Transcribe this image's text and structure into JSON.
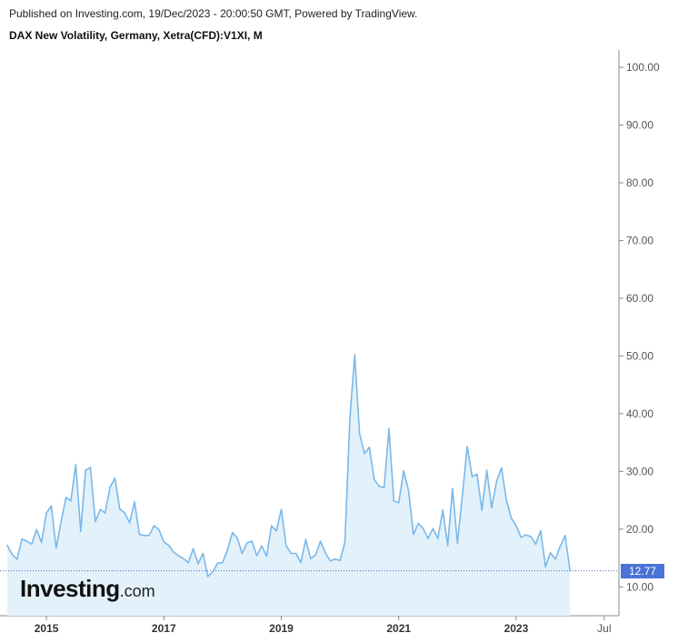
{
  "header": {
    "published": "Published on Investing.com, 19/Dec/2023 - 20:00:50 GMT, Powered by TradingView.",
    "title": "DAX New Volatility, Germany, Xetra(CFD):V1XI, M"
  },
  "logo": {
    "main": "Investing",
    "suffix": ".com"
  },
  "colors": {
    "line": "#7ab8ea",
    "area": "#e3f1fb",
    "badge": "#4a73d6",
    "axis": "#555555"
  },
  "chart_data": {
    "type": "area",
    "title": "DAX New Volatility, Germany, Xetra(CFD):V1XI, M",
    "interval": "M",
    "ylim": [
      5,
      103
    ],
    "yticks": [
      10.0,
      20.0,
      30.0,
      40.0,
      50.0,
      60.0,
      70.0,
      80.0,
      90.0,
      100.0
    ],
    "ytick_labels": [
      "10.00",
      "20.00",
      "30.00",
      "40.00",
      "50.00",
      "60.00",
      "70.00",
      "80.00",
      "90.00",
      "100.00"
    ],
    "xlim": [
      "2014-05",
      "2024-10"
    ],
    "xticks": [
      {
        "label": "2015",
        "date": "2015-01",
        "bold": true
      },
      {
        "label": "2017",
        "date": "2017-01",
        "bold": true
      },
      {
        "label": "2019",
        "date": "2019-01",
        "bold": true
      },
      {
        "label": "2021",
        "date": "2021-01",
        "bold": true
      },
      {
        "label": "2023",
        "date": "2023-01",
        "bold": true
      },
      {
        "label": "Jul",
        "date": "2024-07",
        "bold": false
      }
    ],
    "last_value": "12.77",
    "series": [
      {
        "x": [
          "2014-05",
          "2014-06",
          "2014-07",
          "2014-08",
          "2014-09",
          "2014-10",
          "2014-11",
          "2014-12",
          "2015-01",
          "2015-02",
          "2015-03",
          "2015-04",
          "2015-05",
          "2015-06",
          "2015-07",
          "2015-08",
          "2015-09",
          "2015-10",
          "2015-11",
          "2015-12",
          "2016-01",
          "2016-02",
          "2016-03",
          "2016-04",
          "2016-05",
          "2016-06",
          "2016-07",
          "2016-08",
          "2016-09",
          "2016-10",
          "2016-11",
          "2016-12",
          "2017-01",
          "2017-02",
          "2017-03",
          "2017-04",
          "2017-05",
          "2017-06",
          "2017-07",
          "2017-08",
          "2017-09",
          "2017-10",
          "2017-11",
          "2017-12",
          "2018-01",
          "2018-02",
          "2018-03",
          "2018-04",
          "2018-05",
          "2018-06",
          "2018-07",
          "2018-08",
          "2018-09",
          "2018-10",
          "2018-11",
          "2018-12",
          "2019-01",
          "2019-02",
          "2019-03",
          "2019-04",
          "2019-05",
          "2019-06",
          "2019-07",
          "2019-08",
          "2019-09",
          "2019-10",
          "2019-11",
          "2019-12",
          "2020-01",
          "2020-02",
          "2020-03",
          "2020-04",
          "2020-05",
          "2020-06",
          "2020-07",
          "2020-08",
          "2020-09",
          "2020-10",
          "2020-11",
          "2020-12",
          "2021-01",
          "2021-02",
          "2021-03",
          "2021-04",
          "2021-05",
          "2021-06",
          "2021-07",
          "2021-08",
          "2021-09",
          "2021-10",
          "2021-11",
          "2021-12",
          "2022-01",
          "2022-02",
          "2022-03",
          "2022-04",
          "2022-05",
          "2022-06",
          "2022-07",
          "2022-08",
          "2022-09",
          "2022-10",
          "2022-11",
          "2022-12",
          "2023-01",
          "2023-02",
          "2023-03",
          "2023-04",
          "2023-05",
          "2023-06",
          "2023-07",
          "2023-08",
          "2023-09",
          "2023-10",
          "2023-11",
          "2023-12"
        ],
        "values": [
          17.2,
          15.6,
          14.8,
          18.3,
          17.9,
          17.4,
          19.9,
          17.7,
          22.8,
          24.0,
          16.7,
          21.3,
          25.5,
          24.9,
          31.2,
          19.6,
          30.2,
          30.7,
          21.3,
          23.4,
          22.8,
          27.3,
          28.8,
          23.5,
          22.8,
          21.1,
          24.7,
          19.1,
          18.9,
          18.9,
          20.6,
          19.9,
          17.8,
          17.2,
          16.0,
          15.4,
          14.9,
          14.2,
          16.6,
          14.0,
          15.8,
          11.8,
          12.6,
          14.1,
          14.2,
          16.4,
          19.4,
          18.5,
          15.8,
          17.6,
          17.9,
          15.4,
          17.1,
          15.3,
          20.6,
          19.7,
          23.4,
          17.1,
          15.8,
          15.8,
          14.2,
          18.2,
          14.9,
          15.5,
          17.9,
          15.9,
          14.5,
          14.8,
          14.6,
          17.7,
          39.0,
          50.2,
          36.6,
          33.1,
          34.2,
          28.6,
          27.4,
          27.2,
          37.4,
          24.9,
          24.6,
          30.1,
          26.7,
          19.1,
          21.0,
          20.1,
          18.4,
          20.1,
          18.4,
          23.3,
          17.2,
          27.0,
          17.6,
          25.8,
          34.3,
          29.1,
          29.5,
          23.3,
          30.2,
          23.7,
          28.3,
          30.6,
          25.0,
          21.9,
          20.6,
          18.6,
          19.0,
          18.7,
          17.4,
          19.7,
          13.5,
          15.9,
          14.8,
          17.0,
          18.9,
          12.77
        ]
      }
    ]
  }
}
